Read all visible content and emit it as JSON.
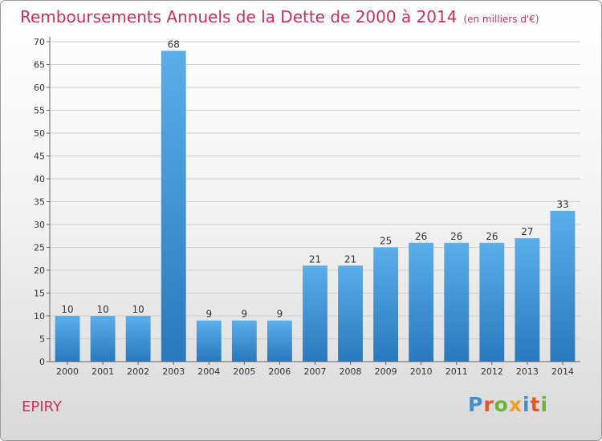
{
  "title": "Remboursements Annuels de la Dette de 2000 à 2014",
  "subtitle": "(en milliers d'€)",
  "commune": "EPIRY",
  "logo": {
    "letters": [
      "P",
      "r",
      "o",
      "x",
      "i",
      "t",
      "i"
    ],
    "colors": [
      "#3f8fd6",
      "#e8552b",
      "#6bb536",
      "#f0a01e",
      "#3f8fd6",
      "#e8552b",
      "#6bb536"
    ]
  },
  "chart_data": {
    "type": "bar",
    "categories": [
      "2000",
      "2001",
      "2002",
      "2003",
      "2004",
      "2005",
      "2006",
      "2007",
      "2008",
      "2009",
      "2010",
      "2011",
      "2012",
      "2013",
      "2014"
    ],
    "values": [
      10,
      10,
      10,
      68,
      9,
      9,
      9,
      21,
      21,
      25,
      26,
      26,
      26,
      27,
      33
    ],
    "title": "Remboursements Annuels de la Dette de 2000 à 2014",
    "subtitle": "(en milliers d'€)",
    "ylim": [
      0,
      70
    ],
    "yticks": [
      0,
      5,
      10,
      15,
      20,
      25,
      30,
      35,
      40,
      45,
      50,
      55,
      60,
      65,
      70
    ],
    "grid": true,
    "bar_color": "#4a9fe0"
  }
}
